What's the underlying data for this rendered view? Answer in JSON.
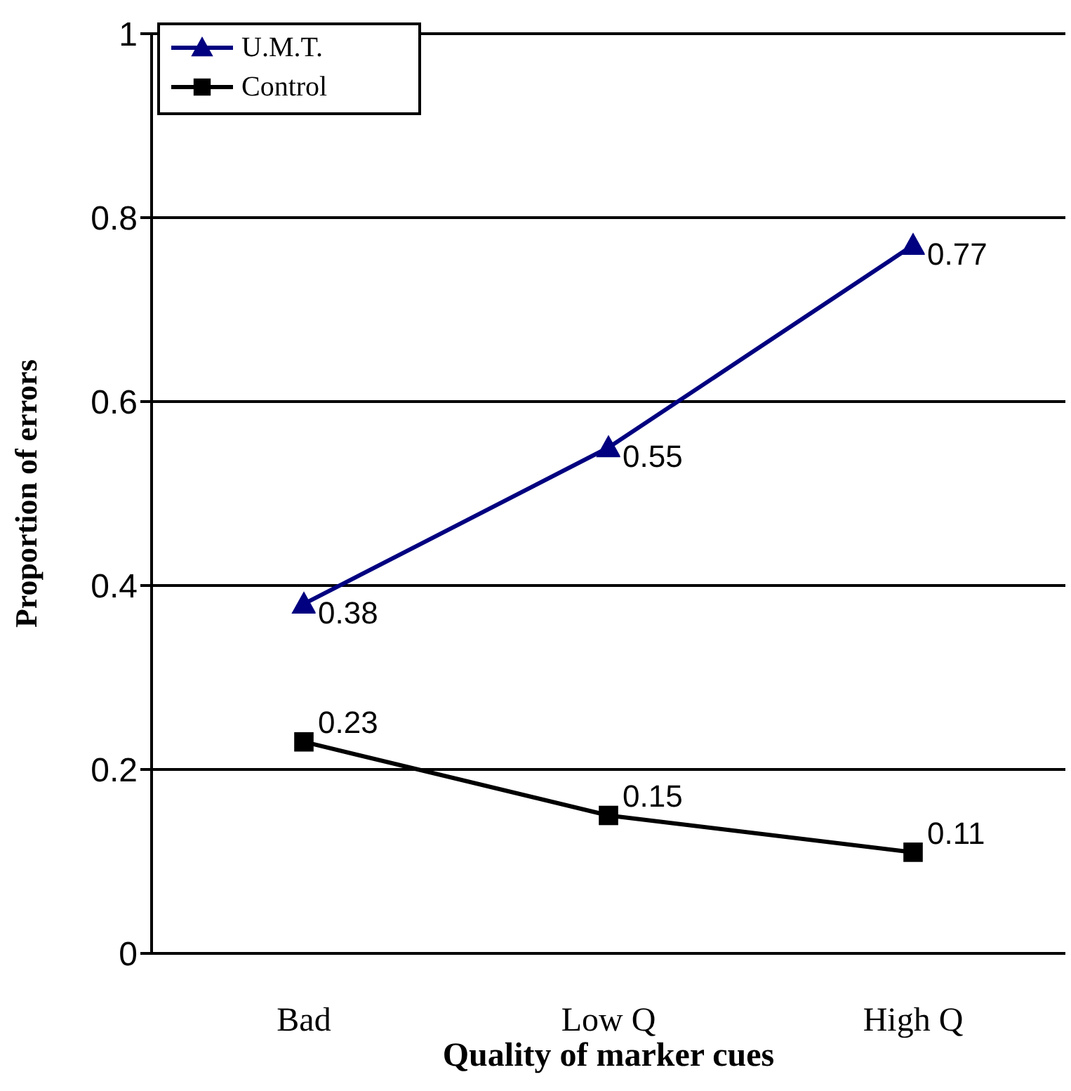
{
  "chart_data": {
    "type": "line",
    "xlabel": "Quality of marker cues",
    "ylabel": "Proportion of errors",
    "categories": [
      "Bad",
      "Low Q",
      "High Q"
    ],
    "series": [
      {
        "name": "U.M.T.",
        "color": "#000080",
        "values": [
          0.38,
          0.55,
          0.77
        ],
        "marker": "triangle"
      },
      {
        "name": "Control",
        "color": "#000000",
        "values": [
          0.23,
          0.15,
          0.11
        ],
        "marker": "square"
      }
    ],
    "ylim": [
      0,
      1
    ],
    "yticks": [
      0,
      0.2,
      0.4,
      0.6,
      0.8,
      1
    ],
    "grid": "y",
    "legend": "top left",
    "data_labels": true
  }
}
